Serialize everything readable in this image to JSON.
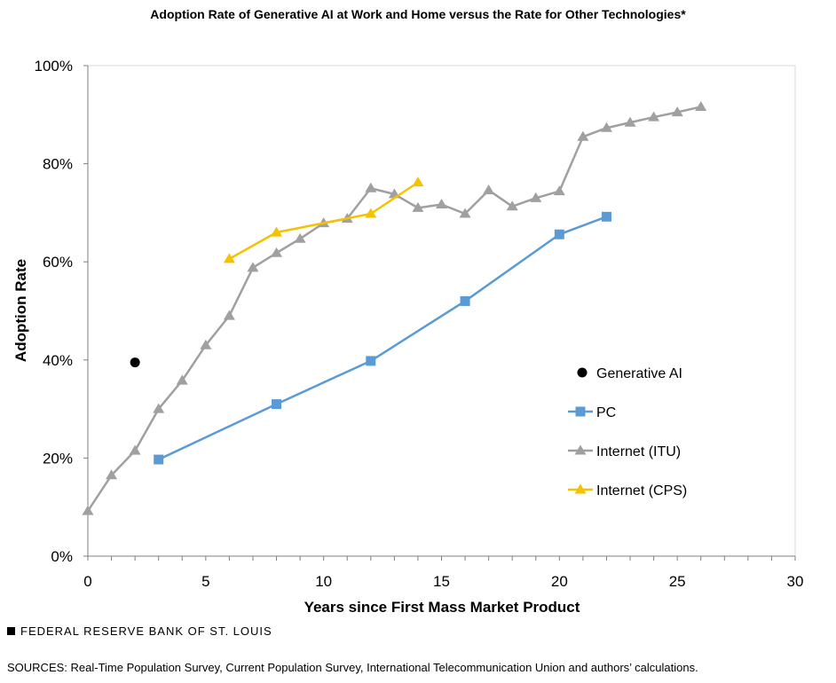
{
  "chart_data": {
    "type": "line",
    "title": "Adoption Rate of Generative AI at Work and Home versus the Rate for Other Technologies*",
    "xlabel": "Years since First Mass Market Product",
    "ylabel": "Adoption Rate",
    "xlim": [
      0,
      30
    ],
    "ylim": [
      0,
      100
    ],
    "xticks": [
      0,
      5,
      10,
      15,
      20,
      25,
      30
    ],
    "yticks": [
      0,
      20,
      40,
      60,
      80,
      100
    ],
    "ytick_labels": [
      "0%",
      "20%",
      "40%",
      "60%",
      "80%",
      "100%"
    ],
    "grid": false,
    "legend_position": "right",
    "series": [
      {
        "name": "Generative AI",
        "color": "#000000",
        "marker": "circle",
        "line": false,
        "x": [
          2
        ],
        "y": [
          39.5
        ]
      },
      {
        "name": "PC",
        "color": "#5b9bd5",
        "marker": "square",
        "line": true,
        "x": [
          3,
          8,
          12,
          16,
          20,
          22
        ],
        "y": [
          19.7,
          31,
          39.8,
          52,
          65.6,
          69.2
        ]
      },
      {
        "name": "Internet (ITU)",
        "color": "#a0a0a0",
        "marker": "triangle",
        "line": true,
        "x": [
          0,
          1,
          2,
          3,
          4,
          5,
          6,
          7,
          8,
          9,
          10,
          11,
          12,
          13,
          14,
          15,
          16,
          17,
          18,
          19,
          20,
          21,
          22,
          23,
          24,
          25,
          26
        ],
        "y": [
          9.2,
          16.5,
          21.5,
          30,
          35.8,
          43,
          49,
          58.8,
          61.8,
          64.7,
          67.9,
          68.8,
          75,
          73.8,
          71,
          71.7,
          69.8,
          74.6,
          71.3,
          73,
          74.4,
          85.5,
          87.3,
          88.4,
          89.5,
          90.5,
          91.6
        ]
      },
      {
        "name": "Internet (CPS)",
        "color": "#f5c200",
        "marker": "triangle",
        "line": true,
        "x": [
          6,
          8,
          12,
          14
        ],
        "y": [
          60.6,
          66,
          69.8,
          76.2
        ]
      }
    ]
  },
  "footer": {
    "brand": "FEDERAL RESERVE BANK OF ST. LOUIS",
    "sources": "SOURCES: Real-Time Population Survey, Current Population Survey, International Telecommunication Union and authors’ calculations."
  }
}
